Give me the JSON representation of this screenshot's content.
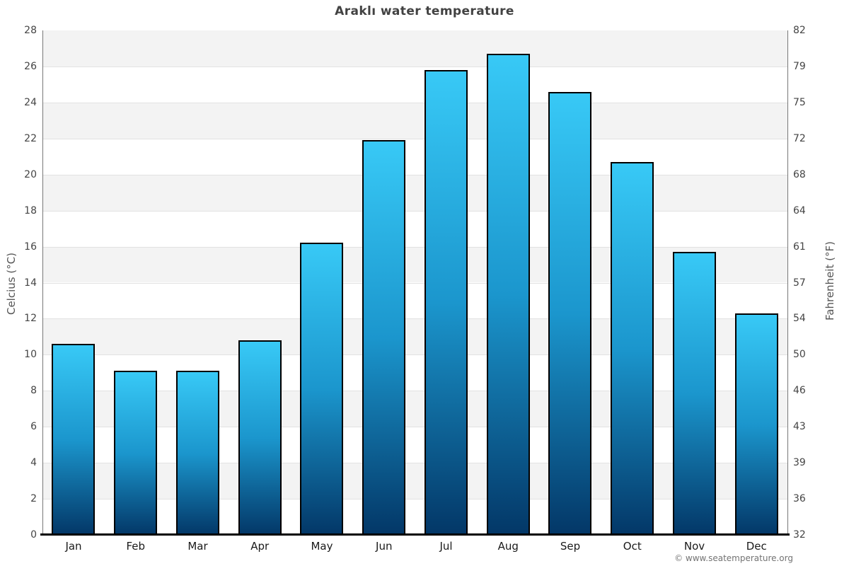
{
  "title": "Araklı water temperature",
  "attribution": "© www.seatemperature.org",
  "chart_data": {
    "type": "bar",
    "title": "Araklı water temperature",
    "categories": [
      "Jan",
      "Feb",
      "Mar",
      "Apr",
      "May",
      "Jun",
      "Jul",
      "Aug",
      "Sep",
      "Oct",
      "Nov",
      "Dec"
    ],
    "values": [
      10.6,
      9.1,
      9.1,
      10.8,
      16.2,
      21.9,
      25.8,
      26.7,
      24.6,
      20.7,
      15.7,
      12.3
    ],
    "xlabel": "",
    "ylabel": "Celcius (°C)",
    "ylabel_right": "Fahrenheit (°F)",
    "ylim": [
      0,
      28
    ],
    "yticks_celsius": [
      0,
      2,
      4,
      6,
      8,
      10,
      12,
      14,
      16,
      18,
      20,
      22,
      24,
      26,
      28
    ],
    "yticks_fahrenheit": [
      32,
      36,
      39,
      43,
      46,
      50,
      54,
      57,
      61,
      64,
      68,
      72,
      75,
      79,
      82
    ],
    "grid": "alternating horizontal bands every 2°C, gray band at top (26-28)",
    "legend": "none",
    "colors": {
      "bar_gradient_top": "#38c9f6",
      "bar_gradient_mid": "#1b96cd",
      "bar_gradient_bottom": "#033767",
      "bar_border": "#000000",
      "band_gray": "#f3f3f3",
      "band_white": "#ffffff",
      "gridline": "#e2e2e2",
      "axis_line": "#777777",
      "baseline": "#000000",
      "title_color": "#424242",
      "tick_color": "#444444",
      "month_color": "#1a1a1a",
      "axis_title_color": "#555555",
      "attribution_color": "#737373"
    }
  }
}
